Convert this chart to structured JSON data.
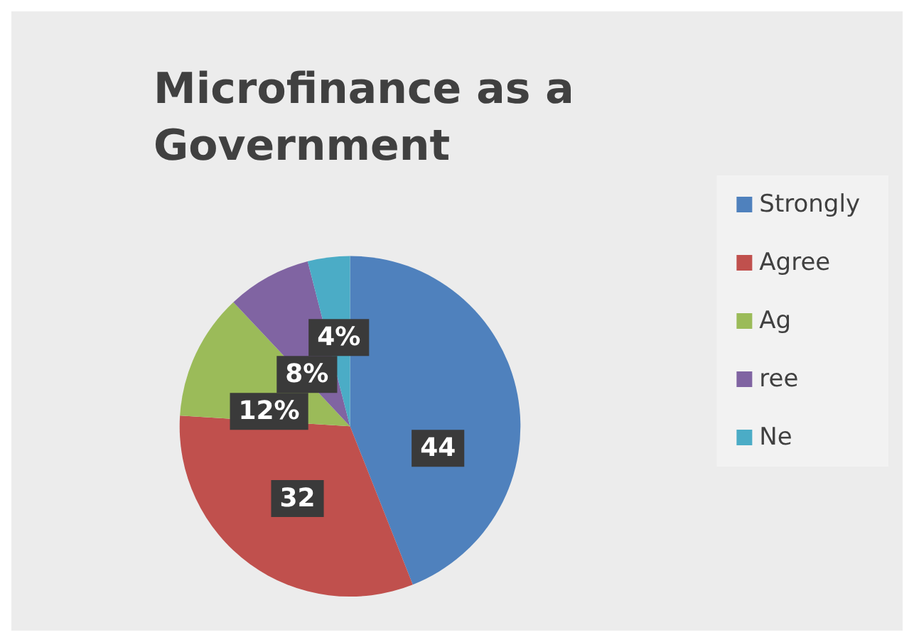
{
  "chart_data": {
    "type": "pie",
    "title": "Microfinance as a Government",
    "categories": [
      "Strongly",
      "Agree",
      "Ag",
      "ree",
      "Ne"
    ],
    "values": [
      44,
      32,
      12,
      8,
      4
    ],
    "colors": [
      "#4f81bd",
      "#c0504d",
      "#9bbb59",
      "#8064a2",
      "#4bacc6"
    ],
    "value_labels": [
      "44",
      "32",
      "12%",
      "8%",
      "4%"
    ],
    "legend": "right"
  }
}
